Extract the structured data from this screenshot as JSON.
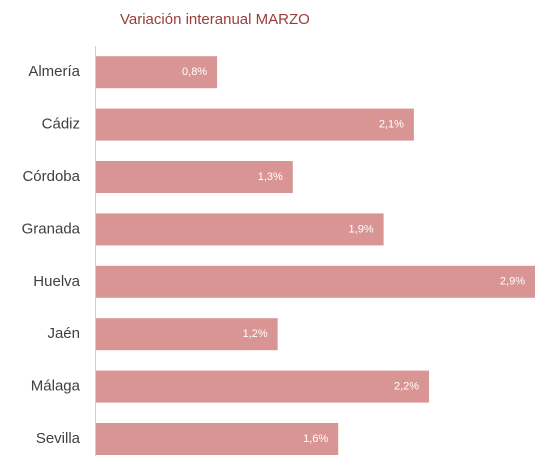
{
  "chart_data": {
    "type": "hbar",
    "title": "Variación interanual MARZO",
    "categories": [
      "Almería",
      "Cádiz",
      "Córdoba",
      "Granada",
      "Huelva",
      "Jaén",
      "Málaga",
      "Sevilla"
    ],
    "values": [
      0.8,
      2.1,
      1.3,
      1.9,
      2.9,
      1.2,
      2.2,
      1.6
    ],
    "value_labels": [
      "0,8%",
      "2,1%",
      "1,3%",
      "1,9%",
      "2,9%",
      "1,2%",
      "2,2%",
      "1,6%"
    ],
    "color": "#d99594"
  }
}
